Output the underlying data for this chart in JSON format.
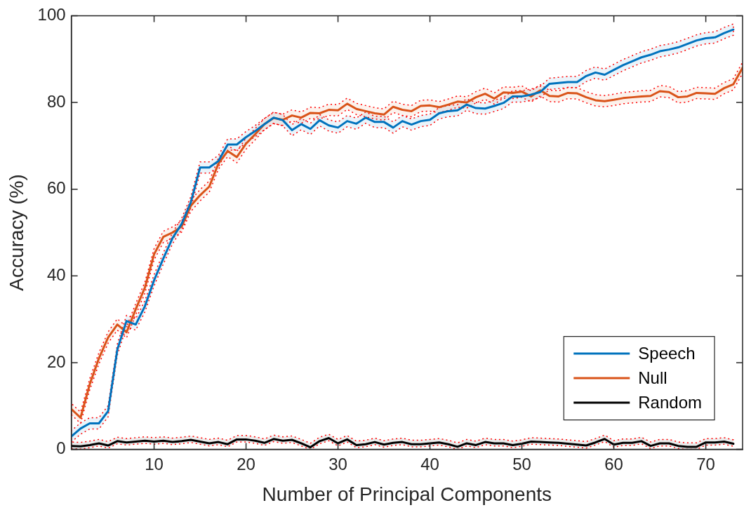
{
  "chart_data": {
    "type": "line",
    "xlabel": "Number of Principal Components",
    "ylabel": "Accuracy (%)",
    "x": [
      1,
      2,
      3,
      4,
      5,
      6,
      7,
      8,
      9,
      10,
      11,
      12,
      13,
      14,
      15,
      16,
      17,
      18,
      19,
      20,
      21,
      22,
      23,
      24,
      25,
      26,
      27,
      28,
      29,
      30,
      31,
      32,
      33,
      34,
      35,
      36,
      37,
      38,
      39,
      40,
      41,
      42,
      43,
      44,
      45,
      46,
      47,
      48,
      49,
      50,
      51,
      52,
      53,
      54,
      55,
      56,
      57,
      58,
      59,
      60,
      61,
      62,
      63,
      64,
      65,
      66,
      67,
      68,
      69,
      70,
      71,
      72,
      73,
      74
    ],
    "xlim": [
      1,
      74
    ],
    "xticks": [
      10,
      20,
      30,
      40,
      50,
      60,
      70
    ],
    "ylim": [
      0,
      100
    ],
    "yticks": [
      0,
      20,
      40,
      60,
      80,
      100
    ],
    "grid": false,
    "legend": "bottom right",
    "line_style": "solid",
    "series": [
      {
        "name": "Speech",
        "color": "#0072bd",
        "values": [
          3.0,
          4.8,
          6.0,
          6.0,
          8.8,
          23,
          29.6,
          28.8,
          33,
          39,
          44,
          48.7,
          52,
          57,
          65,
          65,
          66.5,
          70.3,
          70.3,
          72,
          73.4,
          75,
          76.5,
          75.9,
          73.6,
          75.0,
          73.9,
          75.9,
          74.7,
          74.2,
          75.7,
          75.1,
          76.5,
          75.5,
          75.5,
          74.2,
          75.7,
          74.9,
          75.7,
          76.0,
          77.5,
          78.0,
          78.2,
          79.5,
          78.7,
          78.6,
          79.2,
          79.9,
          81.4,
          81.4,
          81.8,
          82.4,
          84.3,
          84.5,
          84.7,
          84.7,
          86.1,
          86.9,
          86.4,
          87.5,
          88.6,
          89.5,
          90.4,
          91,
          91.8,
          92.2,
          92.7,
          93.5,
          94.3,
          94.8,
          95,
          96,
          96.8,
          null
        ],
        "lower": [
          1.7,
          3.5,
          4.7,
          4.7,
          7.5,
          21.7,
          28.3,
          27.5,
          31.7,
          37.7,
          42.7,
          47.4,
          50.7,
          55.7,
          63.7,
          63.7,
          65.2,
          69,
          69,
          70.7,
          72.1,
          73.7,
          75.2,
          74.6,
          72.3,
          73.7,
          72.6,
          74.6,
          73.4,
          72.9,
          74.4,
          73.8,
          75.2,
          74.2,
          74.2,
          72.9,
          74.4,
          73.6,
          74.4,
          74.7,
          76.2,
          76.7,
          76.9,
          78.2,
          77.4,
          77.3,
          77.9,
          78.6,
          80.1,
          80.1,
          80.5,
          81.1,
          83,
          83.2,
          83.4,
          83.4,
          84.8,
          85.6,
          85.1,
          86.2,
          87.3,
          88.2,
          89.1,
          89.7,
          90.5,
          90.9,
          91.4,
          92.2,
          93,
          93.5,
          93.7,
          94.7,
          95.5,
          null
        ],
        "upper": [
          4.3,
          6.1,
          7.3,
          7.3,
          10.1,
          24.3,
          30.9,
          30.1,
          34.3,
          40.3,
          45.3,
          50,
          53.3,
          58.3,
          66.3,
          66.3,
          67.8,
          71.6,
          71.6,
          73.3,
          74.7,
          76.3,
          77.8,
          77.2,
          74.9,
          76.3,
          75.2,
          77.2,
          76,
          75.5,
          77,
          76.4,
          77.8,
          76.8,
          76.8,
          75.5,
          77,
          76.2,
          77,
          77.3,
          78.8,
          79.3,
          79.5,
          80.8,
          80,
          79.9,
          80.5,
          81.2,
          82.7,
          82.7,
          83.1,
          83.7,
          85.6,
          85.8,
          86,
          86,
          87.4,
          88.2,
          87.7,
          88.8,
          89.9,
          90.8,
          91.7,
          92.3,
          93.1,
          93.5,
          94,
          94.8,
          95.6,
          96.1,
          96.3,
          97.3,
          98.1,
          null
        ]
      },
      {
        "name": "Null",
        "color": "#d95319",
        "values": [
          9.3,
          7.3,
          15,
          21,
          25.8,
          28.8,
          27,
          32.3,
          37.3,
          45,
          49,
          50,
          51.4,
          56.2,
          58.6,
          60.6,
          65.9,
          68.8,
          67.4,
          70.5,
          72.7,
          75,
          76.4,
          76,
          77,
          76.5,
          77.6,
          77.5,
          78.3,
          78.2,
          79.7,
          78.5,
          78.0,
          77.5,
          77.2,
          79.0,
          78.3,
          78.0,
          79.2,
          79.3,
          78.9,
          79.5,
          80.2,
          80,
          81.2,
          82.0,
          80.9,
          82.3,
          82.2,
          82.5,
          81.4,
          82.8,
          81.5,
          81.4,
          82.2,
          82.1,
          81.2,
          80.5,
          80.3,
          80.6,
          81.0,
          81.2,
          81.4,
          81.5,
          82.6,
          82.4,
          81.2,
          81.4,
          82.2,
          82.1,
          82.0,
          83.3,
          84.2,
          88
        ],
        "lower": [
          8,
          6,
          13.7,
          19.7,
          24.5,
          27.5,
          25.7,
          31,
          36,
          43.7,
          47.7,
          48.7,
          50.1,
          54.9,
          57.3,
          59.3,
          64.6,
          67.5,
          66.1,
          69.2,
          71.4,
          73.7,
          75.1,
          74.7,
          75.7,
          75.2,
          76.3,
          76.2,
          77,
          76.9,
          78.4,
          77.2,
          76.7,
          76.2,
          75.9,
          77.7,
          77,
          76.7,
          77.9,
          78,
          77.6,
          78.2,
          78.9,
          78.7,
          79.9,
          80.7,
          79.6,
          81,
          80.9,
          81.2,
          80.1,
          81.5,
          80.2,
          80.1,
          80.9,
          80.8,
          79.9,
          79.2,
          79,
          79.3,
          79.7,
          79.9,
          80.1,
          80.2,
          81.3,
          81.1,
          79.9,
          80.1,
          80.9,
          80.8,
          80.7,
          82,
          82.9,
          86.7
        ],
        "upper": [
          10.6,
          8.6,
          16.3,
          22.3,
          27.1,
          30.1,
          28.3,
          33.6,
          38.6,
          46.3,
          50.3,
          51.3,
          52.7,
          57.5,
          59.9,
          61.9,
          67.2,
          70.1,
          68.7,
          71.8,
          74,
          76.3,
          77.7,
          77.3,
          78.3,
          77.8,
          78.9,
          78.8,
          79.6,
          79.5,
          81,
          79.8,
          79.3,
          78.8,
          78.5,
          80.3,
          79.6,
          79.3,
          80.5,
          80.6,
          80.2,
          80.8,
          81.5,
          81.3,
          82.5,
          83.3,
          82.2,
          83.6,
          83.5,
          83.8,
          82.7,
          84.1,
          82.8,
          82.7,
          83.5,
          83.4,
          82.5,
          81.8,
          81.6,
          81.9,
          82.3,
          82.5,
          82.7,
          82.8,
          83.9,
          83.7,
          82.5,
          82.7,
          83.5,
          83.4,
          83.3,
          84.6,
          85.5,
          89.3
        ]
      },
      {
        "name": "Random",
        "color": "#000000",
        "values": [
          0.8,
          0.7,
          1,
          1.4,
          0.9,
          1.9,
          1.6,
          1.8,
          2,
          1.8,
          2,
          1.7,
          1.9,
          2.2,
          1.8,
          1.4,
          1.7,
          1.2,
          2.3,
          2.3,
          2,
          1.5,
          2.4,
          2,
          2.2,
          1.4,
          0.5,
          1.9,
          2.6,
          1.4,
          2.3,
          1,
          1.2,
          1.7,
          1.1,
          1.5,
          1.7,
          1.2,
          1.2,
          1.4,
          1.6,
          1.2,
          0.6,
          1.4,
          1,
          1.7,
          1.4,
          1.4,
          1,
          1.3,
          1.8,
          1.7,
          1.6,
          1.5,
          1.3,
          1.1,
          0.9,
          1.6,
          2.4,
          1.1,
          1.5,
          1.5,
          1.9,
          0.8,
          1.4,
          1.4,
          0.8,
          0.6,
          0.6,
          1.6,
          1.6,
          1.8,
          1.3,
          null
        ],
        "lower": [
          0.2,
          0.1,
          0.4,
          0.8,
          0.3,
          1.3,
          1,
          1.2,
          1.4,
          1.2,
          1.4,
          1.1,
          1.3,
          1.6,
          1.2,
          0.8,
          1.1,
          0.6,
          1.7,
          1.7,
          1.4,
          0.9,
          1.8,
          1.4,
          1.6,
          0.8,
          0,
          1.3,
          2,
          0.8,
          1.7,
          0.4,
          0.6,
          1.1,
          0.5,
          0.9,
          1.1,
          0.6,
          0.6,
          0.8,
          1,
          0.6,
          0,
          0.8,
          0.4,
          1.1,
          0.8,
          0.8,
          0.4,
          0.7,
          1.2,
          1.1,
          1,
          0.9,
          0.7,
          0.5,
          0.3,
          1,
          1.8,
          0.5,
          0.9,
          0.9,
          1.3,
          0.2,
          0.8,
          0.8,
          0.2,
          0,
          0,
          1,
          1,
          1.2,
          0.7,
          null
        ],
        "upper": [
          1.7,
          1.6,
          1.9,
          2.3,
          1.8,
          2.8,
          2.5,
          2.7,
          2.9,
          2.7,
          2.9,
          2.6,
          2.8,
          3.1,
          2.7,
          2.3,
          2.6,
          2.1,
          3.2,
          3.2,
          2.9,
          2.4,
          3.3,
          2.9,
          3.1,
          2.3,
          1.4,
          2.8,
          3.5,
          2.3,
          3.2,
          1.9,
          2.1,
          2.6,
          2,
          2.4,
          2.6,
          2.1,
          2.1,
          2.3,
          2.5,
          2.1,
          1.5,
          2.3,
          1.9,
          2.6,
          2.3,
          2.3,
          1.9,
          2.2,
          2.7,
          2.6,
          2.5,
          2.4,
          2.2,
          2,
          1.8,
          2.5,
          3.3,
          2,
          2.4,
          2.4,
          2.8,
          1.7,
          2.3,
          2.3,
          1.7,
          1.5,
          1.5,
          2.5,
          2.5,
          2.7,
          2.2,
          null
        ]
      }
    ]
  }
}
